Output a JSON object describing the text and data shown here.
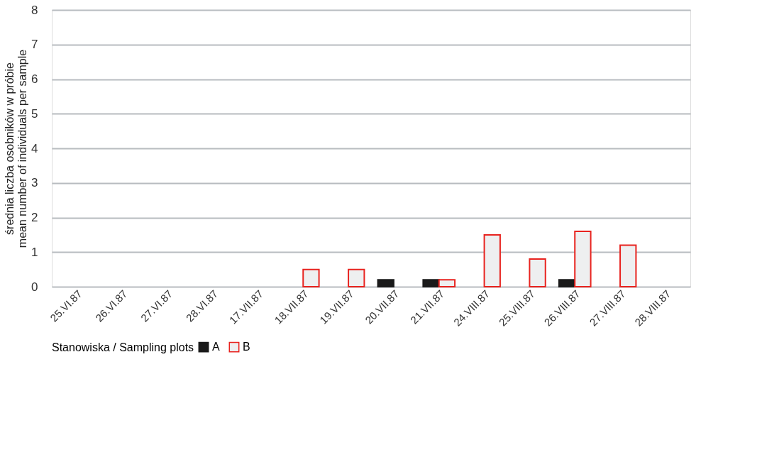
{
  "chart_data": {
    "type": "bar",
    "ylabel": "średnia liczba osobników w próbie\nmean number of individuals per sample",
    "legend_title": "Stanowiska / Sampling plots",
    "categories": [
      "25.VI.87",
      "26.VI.87",
      "27.VI.87",
      "28.VI.87",
      "17.VII.87",
      "18.VII.87",
      "19.VII.87",
      "20.VII.87",
      "21.VII.87",
      "24.VIII.87",
      "25.VIII.87",
      "26.VIII.87",
      "27.VIII.87",
      "28.VIII.87"
    ],
    "series": [
      {
        "name": "A",
        "color": "#1a1a1a",
        "values": [
          0,
          0,
          0,
          0,
          0,
          0,
          0,
          0.2,
          0.2,
          0,
          0,
          0.2,
          0,
          0
        ]
      },
      {
        "name": "B",
        "color": "#eeeff0",
        "values": [
          0,
          0,
          0,
          0,
          0,
          0.5,
          0.5,
          0,
          0.2,
          1.5,
          0.8,
          1.6,
          1.2,
          0
        ]
      }
    ],
    "ylim": [
      0,
      8
    ],
    "yticks": [
      0,
      1,
      2,
      3,
      4,
      5,
      6,
      7,
      8
    ],
    "grid": "y",
    "legend": "bottom"
  }
}
